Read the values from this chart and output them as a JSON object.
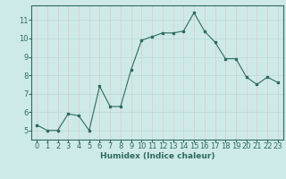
{
  "x": [
    0,
    1,
    2,
    3,
    4,
    5,
    6,
    7,
    8,
    9,
    10,
    11,
    12,
    13,
    14,
    15,
    16,
    17,
    18,
    19,
    20,
    21,
    22,
    23
  ],
  "y": [
    5.3,
    5.0,
    5.0,
    5.9,
    5.8,
    5.0,
    7.4,
    6.3,
    6.3,
    8.3,
    9.9,
    10.1,
    10.3,
    10.3,
    10.4,
    11.4,
    10.4,
    9.8,
    8.9,
    8.9,
    7.9,
    7.5,
    7.9,
    7.6
  ],
  "line_color": "#2e6b5e",
  "marker_color": "#2e6b5e",
  "bg_color": "#ceeae8",
  "grid_color": "#b8d8d6",
  "grid_red_color": "#ddc8c8",
  "xlabel": "Humidex (Indice chaleur)",
  "xlim": [
    -0.5,
    23.5
  ],
  "ylim": [
    4.5,
    11.8
  ],
  "yticks": [
    5,
    6,
    7,
    8,
    9,
    10,
    11
  ],
  "xticks": [
    0,
    1,
    2,
    3,
    4,
    5,
    6,
    7,
    8,
    9,
    10,
    11,
    12,
    13,
    14,
    15,
    16,
    17,
    18,
    19,
    20,
    21,
    22,
    23
  ],
  "tick_color": "#2e6b5e",
  "label_fontsize": 6,
  "axis_fontsize": 6.5
}
